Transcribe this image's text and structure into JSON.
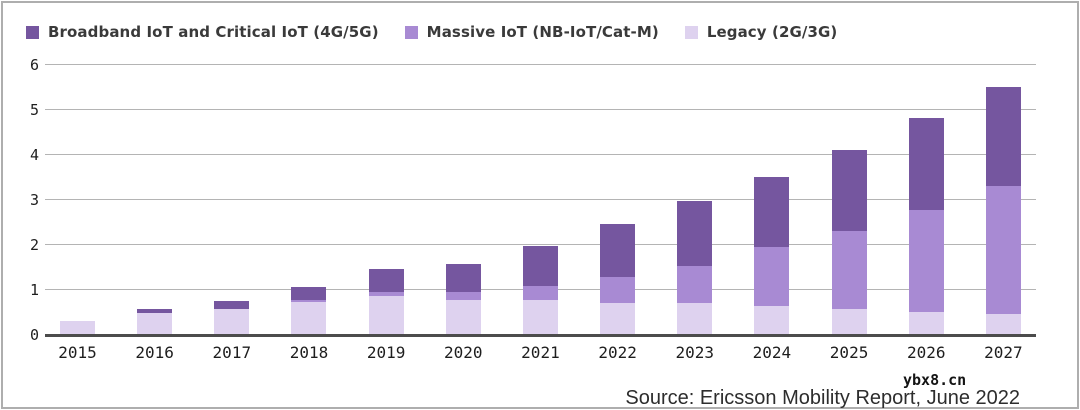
{
  "chart_data": {
    "type": "bar",
    "stacked": true,
    "categories": [
      "2015",
      "2016",
      "2017",
      "2018",
      "2019",
      "2020",
      "2021",
      "2022",
      "2023",
      "2024",
      "2025",
      "2026",
      "2027"
    ],
    "series": [
      {
        "id": "broadband",
        "name": "Broadband IoT and Critical IoT (4G/5G)",
        "color": "#75569f",
        "values": [
          0,
          0.08,
          0.18,
          0.3,
          0.52,
          0.62,
          0.88,
          1.18,
          1.43,
          1.56,
          1.82,
          2.05,
          2.22
        ]
      },
      {
        "id": "massive",
        "name": "Massive IoT (NB-IoT/Cat-M)",
        "color": "#a88ad3",
        "values": [
          0,
          0,
          0,
          0.03,
          0.08,
          0.18,
          0.31,
          0.57,
          0.84,
          1.32,
          1.73,
          2.25,
          2.83
        ]
      },
      {
        "id": "legacy",
        "name": "Legacy (2G/3G)",
        "color": "#ded2ef",
        "values": [
          0.3,
          0.47,
          0.55,
          0.72,
          0.85,
          0.75,
          0.76,
          0.7,
          0.68,
          0.62,
          0.55,
          0.5,
          0.45
        ]
      }
    ],
    "totals": [
      0.3,
      0.55,
      0.73,
      1.05,
      1.45,
      1.55,
      1.95,
      2.45,
      2.95,
      3.5,
      4.1,
      4.8,
      5.5
    ],
    "ylim": [
      0,
      6
    ],
    "yticks": [
      0,
      1,
      2,
      3,
      4,
      5,
      6
    ],
    "grid": "horizontal",
    "legend_position": "top-left",
    "colors": {
      "gridline": "#b4b4b4",
      "axis": "#4c4c4c"
    }
  },
  "footer": {
    "source": "Source: Ericsson Mobility Report, June 2022"
  },
  "watermark": "ybx8.cn"
}
